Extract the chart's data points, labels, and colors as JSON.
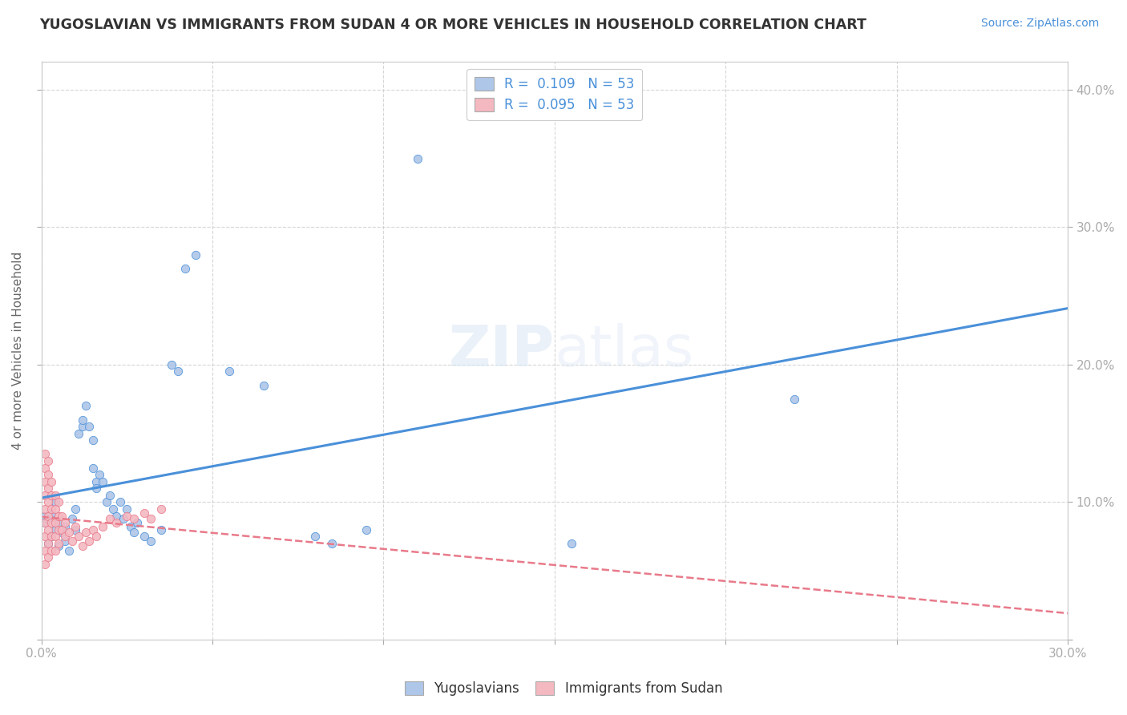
{
  "title": "YUGOSLAVIAN VS IMMIGRANTS FROM SUDAN 4 OR MORE VEHICLES IN HOUSEHOLD CORRELATION CHART",
  "source_text": "Source: ZipAtlas.com",
  "ylabel": "4 or more Vehicles in Household",
  "xlim": [
    0.0,
    0.3
  ],
  "ylim": [
    0.0,
    0.42
  ],
  "x_ticks": [
    0.0,
    0.05,
    0.1,
    0.15,
    0.2,
    0.25,
    0.3
  ],
  "y_ticks": [
    0.0,
    0.1,
    0.2,
    0.3,
    0.4
  ],
  "grid_color": "#cccccc",
  "background_color": "#ffffff",
  "legend_entries": [
    {
      "label": "R =  0.109   N = 53",
      "color": "#aec6e8"
    },
    {
      "label": "R =  0.095   N = 53",
      "color": "#f4b8c1"
    }
  ],
  "yugoslavian_color": "#aec6e8",
  "sudan_color": "#f4b8c1",
  "yugoslavian_line_color": "#4a90d9",
  "sudan_line_color": "#e87a8a",
  "watermark": "ZIPatlas",
  "yugoslavian_scatter": [
    [
      0.001,
      0.09
    ],
    [
      0.001,
      0.085
    ],
    [
      0.002,
      0.088
    ],
    [
      0.002,
      0.07
    ],
    [
      0.003,
      0.092
    ],
    [
      0.003,
      0.075
    ],
    [
      0.004,
      0.1
    ],
    [
      0.004,
      0.08
    ],
    [
      0.005,
      0.085
    ],
    [
      0.005,
      0.068
    ],
    [
      0.006,
      0.078
    ],
    [
      0.007,
      0.082
    ],
    [
      0.007,
      0.072
    ],
    [
      0.008,
      0.065
    ],
    [
      0.009,
      0.088
    ],
    [
      0.01,
      0.095
    ],
    [
      0.01,
      0.08
    ],
    [
      0.011,
      0.15
    ],
    [
      0.012,
      0.155
    ],
    [
      0.012,
      0.16
    ],
    [
      0.013,
      0.17
    ],
    [
      0.014,
      0.155
    ],
    [
      0.015,
      0.145
    ],
    [
      0.015,
      0.125
    ],
    [
      0.016,
      0.115
    ],
    [
      0.016,
      0.11
    ],
    [
      0.017,
      0.12
    ],
    [
      0.018,
      0.115
    ],
    [
      0.019,
      0.1
    ],
    [
      0.02,
      0.105
    ],
    [
      0.021,
      0.095
    ],
    [
      0.022,
      0.09
    ],
    [
      0.023,
      0.1
    ],
    [
      0.024,
      0.088
    ],
    [
      0.025,
      0.095
    ],
    [
      0.026,
      0.082
    ],
    [
      0.027,
      0.078
    ],
    [
      0.028,
      0.085
    ],
    [
      0.03,
      0.075
    ],
    [
      0.032,
      0.072
    ],
    [
      0.035,
      0.08
    ],
    [
      0.038,
      0.2
    ],
    [
      0.04,
      0.195
    ],
    [
      0.042,
      0.27
    ],
    [
      0.045,
      0.28
    ],
    [
      0.055,
      0.195
    ],
    [
      0.065,
      0.185
    ],
    [
      0.08,
      0.075
    ],
    [
      0.085,
      0.07
    ],
    [
      0.095,
      0.08
    ],
    [
      0.11,
      0.35
    ],
    [
      0.155,
      0.07
    ],
    [
      0.22,
      0.175
    ]
  ],
  "sudan_scatter": [
    [
      0.001,
      0.135
    ],
    [
      0.001,
      0.125
    ],
    [
      0.001,
      0.115
    ],
    [
      0.001,
      0.105
    ],
    [
      0.001,
      0.095
    ],
    [
      0.001,
      0.085
    ],
    [
      0.001,
      0.075
    ],
    [
      0.001,
      0.065
    ],
    [
      0.001,
      0.055
    ],
    [
      0.002,
      0.13
    ],
    [
      0.002,
      0.12
    ],
    [
      0.002,
      0.11
    ],
    [
      0.002,
      0.1
    ],
    [
      0.002,
      0.09
    ],
    [
      0.002,
      0.08
    ],
    [
      0.002,
      0.07
    ],
    [
      0.002,
      0.06
    ],
    [
      0.003,
      0.115
    ],
    [
      0.003,
      0.105
    ],
    [
      0.003,
      0.095
    ],
    [
      0.003,
      0.085
    ],
    [
      0.003,
      0.075
    ],
    [
      0.003,
      0.065
    ],
    [
      0.004,
      0.105
    ],
    [
      0.004,
      0.095
    ],
    [
      0.004,
      0.085
    ],
    [
      0.004,
      0.075
    ],
    [
      0.004,
      0.065
    ],
    [
      0.005,
      0.1
    ],
    [
      0.005,
      0.09
    ],
    [
      0.005,
      0.08
    ],
    [
      0.005,
      0.07
    ],
    [
      0.006,
      0.09
    ],
    [
      0.006,
      0.08
    ],
    [
      0.007,
      0.085
    ],
    [
      0.007,
      0.075
    ],
    [
      0.008,
      0.078
    ],
    [
      0.009,
      0.072
    ],
    [
      0.01,
      0.082
    ],
    [
      0.011,
      0.075
    ],
    [
      0.012,
      0.068
    ],
    [
      0.013,
      0.078
    ],
    [
      0.014,
      0.072
    ],
    [
      0.015,
      0.08
    ],
    [
      0.016,
      0.075
    ],
    [
      0.018,
      0.082
    ],
    [
      0.02,
      0.088
    ],
    [
      0.022,
      0.085
    ],
    [
      0.025,
      0.09
    ],
    [
      0.027,
      0.088
    ],
    [
      0.03,
      0.092
    ],
    [
      0.032,
      0.088
    ],
    [
      0.035,
      0.095
    ]
  ]
}
